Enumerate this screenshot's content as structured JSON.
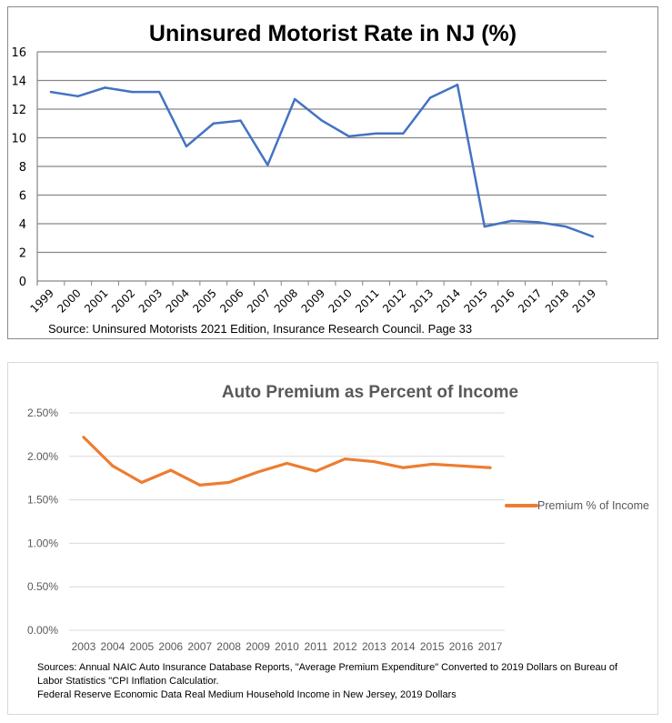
{
  "chart_data": [
    {
      "type": "line",
      "title": "Uninsured Motorist Rate in NJ (%)",
      "xlabel": "",
      "ylabel": "",
      "categories": [
        "1999",
        "2000",
        "2001",
        "2002",
        "2003",
        "2004",
        "2005",
        "2006",
        "2007",
        "2008",
        "2009",
        "2010",
        "2011",
        "2012",
        "2013",
        "2014",
        "2015",
        "2016",
        "2017",
        "2018",
        "2019"
      ],
      "series": [
        {
          "name": "Uninsured Motorist Rate",
          "color": "#4472c4",
          "values": [
            13.2,
            12.9,
            13.5,
            13.2,
            13.2,
            9.4,
            11.0,
            11.2,
            8.1,
            12.7,
            11.2,
            10.1,
            10.3,
            10.3,
            12.8,
            13.7,
            3.8,
            4.2,
            4.1,
            3.8,
            3.1
          ]
        }
      ],
      "ylim": [
        0,
        16
      ],
      "yticks": [
        0,
        2,
        4,
        6,
        8,
        10,
        12,
        14,
        16
      ],
      "ytick_labels": [
        "0",
        "2",
        "4",
        "6",
        "8",
        "10",
        "12",
        "14",
        "16"
      ],
      "grid": true,
      "legend": "none",
      "source": "Source:  Uninsured Motorists 2021 Edition, Insurance Research Council. Page 33"
    },
    {
      "type": "line",
      "title": "Auto Premium as Percent of Income",
      "xlabel": "",
      "ylabel": "",
      "categories": [
        "2003",
        "2004",
        "2005",
        "2006",
        "2007",
        "2008",
        "2009",
        "2010",
        "2011",
        "2012",
        "2013",
        "2014",
        "2015",
        "2016",
        "2017"
      ],
      "series": [
        {
          "name": "Premium % of Income",
          "color": "#ed7d31",
          "values": [
            2.22,
            1.89,
            1.7,
            1.84,
            1.67,
            1.7,
            1.82,
            1.92,
            1.83,
            1.97,
            1.94,
            1.87,
            1.91,
            1.89,
            1.87
          ]
        }
      ],
      "ylim": [
        0,
        2.5
      ],
      "yticks": [
        0,
        0.5,
        1.0,
        1.5,
        2.0,
        2.5
      ],
      "ytick_labels": [
        "0.00%",
        "0.50%",
        "1.00%",
        "1.50%",
        "2.00%",
        "2.50%"
      ],
      "grid": true,
      "legend": "right",
      "source_lines": [
        "Sources: Annual NAIC Auto Insurance Database Reports, \"Average Premium Expenditure\" Converted to 2019 Dollars on Bureau of",
        "Labor Statistics \"CPI Inflation Calculatior.",
        "Federal Reserve Economic Data Real Medium Household Income in New Jersey, 2019 Dollars"
      ]
    }
  ]
}
